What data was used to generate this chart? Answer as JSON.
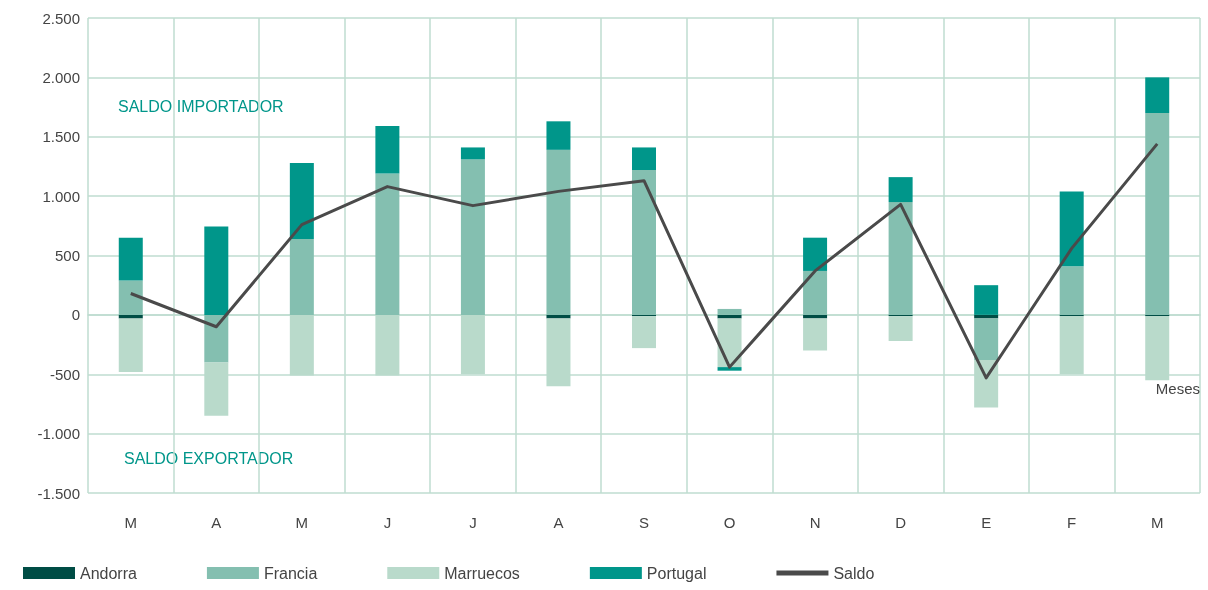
{
  "chart_data": {
    "type": "bar",
    "stacked": true,
    "xlabel": "Meses",
    "categories": [
      "M",
      "A",
      "M",
      "J",
      "J",
      "A",
      "S",
      "O",
      "N",
      "D",
      "E",
      "F",
      "M"
    ],
    "series": [
      {
        "name": "Andorra",
        "color": "#004d45",
        "values": [
          -30,
          0,
          0,
          0,
          0,
          -30,
          -10,
          -30,
          -30,
          -10,
          -30,
          -10,
          -10
        ]
      },
      {
        "name": "Francia",
        "color": "#84bfb0",
        "values": [
          290,
          -400,
          640,
          1190,
          1310,
          1390,
          1220,
          50,
          370,
          950,
          -350,
          410,
          1700
        ]
      },
      {
        "name": "Marruecos",
        "color": "#b9dacb",
        "values": [
          -450,
          -450,
          -510,
          -510,
          -500,
          -570,
          -270,
          -410,
          -270,
          -210,
          -400,
          -490,
          -540
        ]
      },
      {
        "name": "Portugal",
        "color": "#00968a",
        "values": [
          360,
          745,
          640,
          400,
          100,
          240,
          190,
          -30,
          280,
          210,
          250,
          630,
          300
        ]
      },
      {
        "name": "Saldo",
        "type": "line",
        "color": "#4a4a4a",
        "values": [
          180,
          -100,
          760,
          1080,
          920,
          1040,
          1130,
          -440,
          370,
          930,
          -530,
          560,
          1440
        ]
      }
    ],
    "ylim": [
      -1500,
      2500
    ],
    "yticks": [
      {
        "value": -1500,
        "label": "-1.500"
      },
      {
        "value": -1000,
        "label": "-1.000"
      },
      {
        "value": -500,
        "label": "-500"
      },
      {
        "value": 0,
        "label": "0"
      },
      {
        "value": 500,
        "label": "500"
      },
      {
        "value": 1000,
        "label": "1.000"
      },
      {
        "value": 1500,
        "label": "1.500"
      },
      {
        "value": 2000,
        "label": "2.000"
      },
      {
        "value": 2500,
        "label": "2.500"
      }
    ],
    "grid": true,
    "legend": "bottom",
    "marker": "none",
    "annotations": [
      "SALDO IMPORTADOR",
      "SALDO EXPORTADOR"
    ]
  }
}
